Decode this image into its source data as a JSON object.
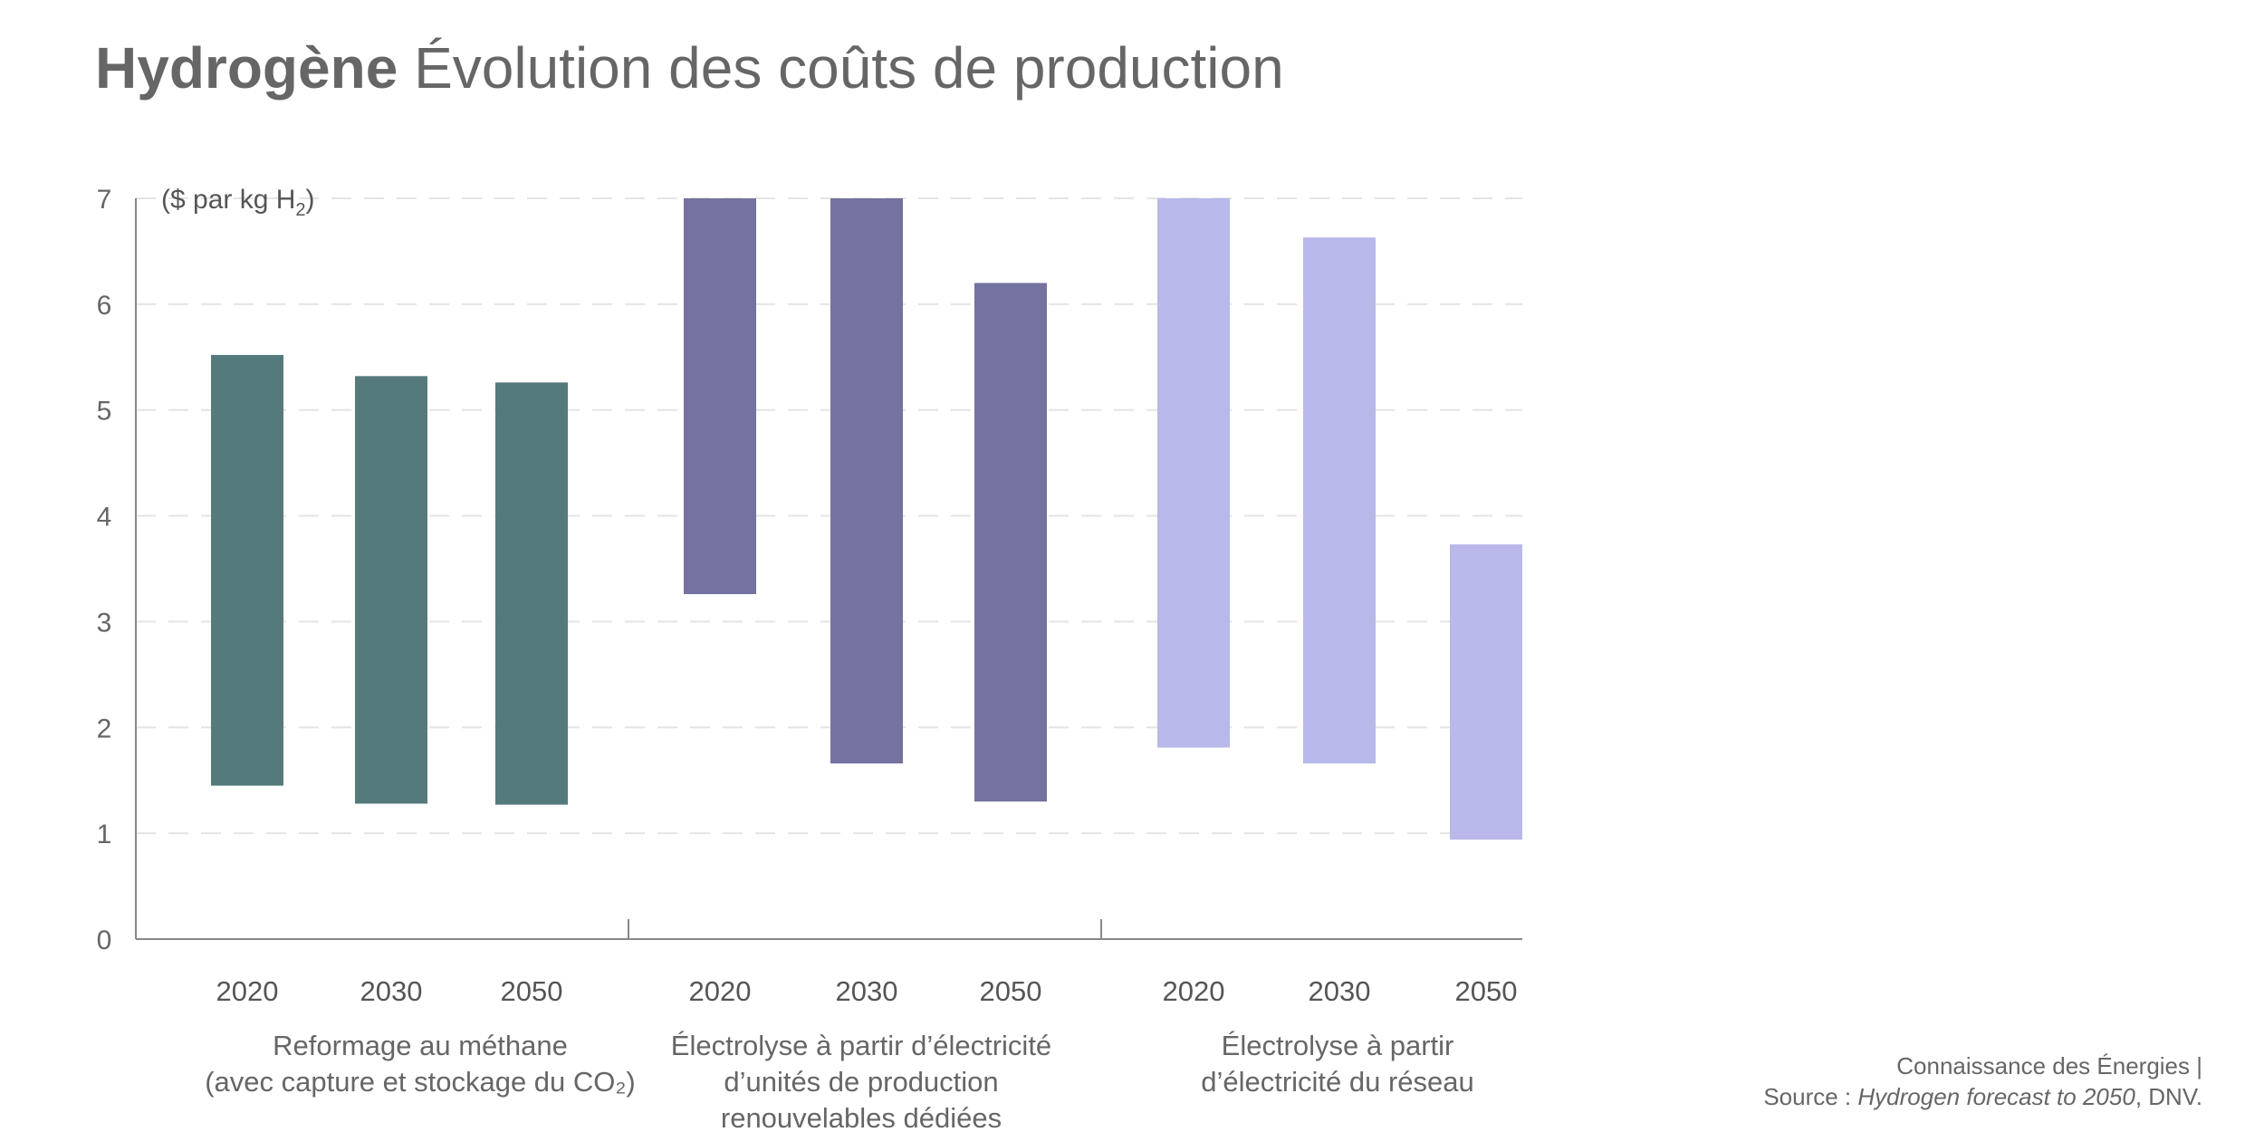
{
  "title": {
    "bold": "Hydrogène",
    "rest": "Évolution des coûts de production"
  },
  "source": {
    "line1": "Connaissance des Énergies |",
    "prefix": "Source : ",
    "italic": "Hydrogen forecast to 2050",
    "suffix": ", DNV."
  },
  "chart_data": {
    "type": "bar",
    "subtype": "floating-range",
    "ylabel": "($ par kg H2)",
    "ylabel_parts": {
      "main": "($ par kg H",
      "sub": "2",
      "end": ")"
    },
    "ylim": [
      0,
      7
    ],
    "yticks": [
      0,
      1,
      2,
      3,
      4,
      5,
      6,
      7
    ],
    "grid": true,
    "groups": [
      {
        "label_lines": [
          "Reformage au méthane",
          "(avec capture et stockage du CO₂)"
        ],
        "color": "#557a7c",
        "bars": [
          {
            "year": "2020",
            "low": 1.45,
            "high": 5.52
          },
          {
            "year": "2030",
            "low": 1.28,
            "high": 5.32
          },
          {
            "year": "2050",
            "low": 1.27,
            "high": 5.26
          }
        ]
      },
      {
        "label_lines": [
          "Électrolyse à partir d’électricité",
          "d’unités de production",
          "renouvelables dédiées"
        ],
        "color": "#74729f",
        "bars": [
          {
            "year": "2020",
            "low": 3.26,
            "high": 7.0
          },
          {
            "year": "2030",
            "low": 1.66,
            "high": 7.0
          },
          {
            "year": "2050",
            "low": 1.3,
            "high": 6.2
          }
        ]
      },
      {
        "label_lines": [
          "Électrolyse à partir",
          "d’électricité du réseau"
        ],
        "color": "#b8b8ea",
        "bars": [
          {
            "year": "2020",
            "low": 1.81,
            "high": 7.0
          },
          {
            "year": "2030",
            "low": 1.66,
            "high": 6.63
          },
          {
            "year": "2050",
            "low": 0.94,
            "high": 3.73
          }
        ]
      }
    ]
  }
}
